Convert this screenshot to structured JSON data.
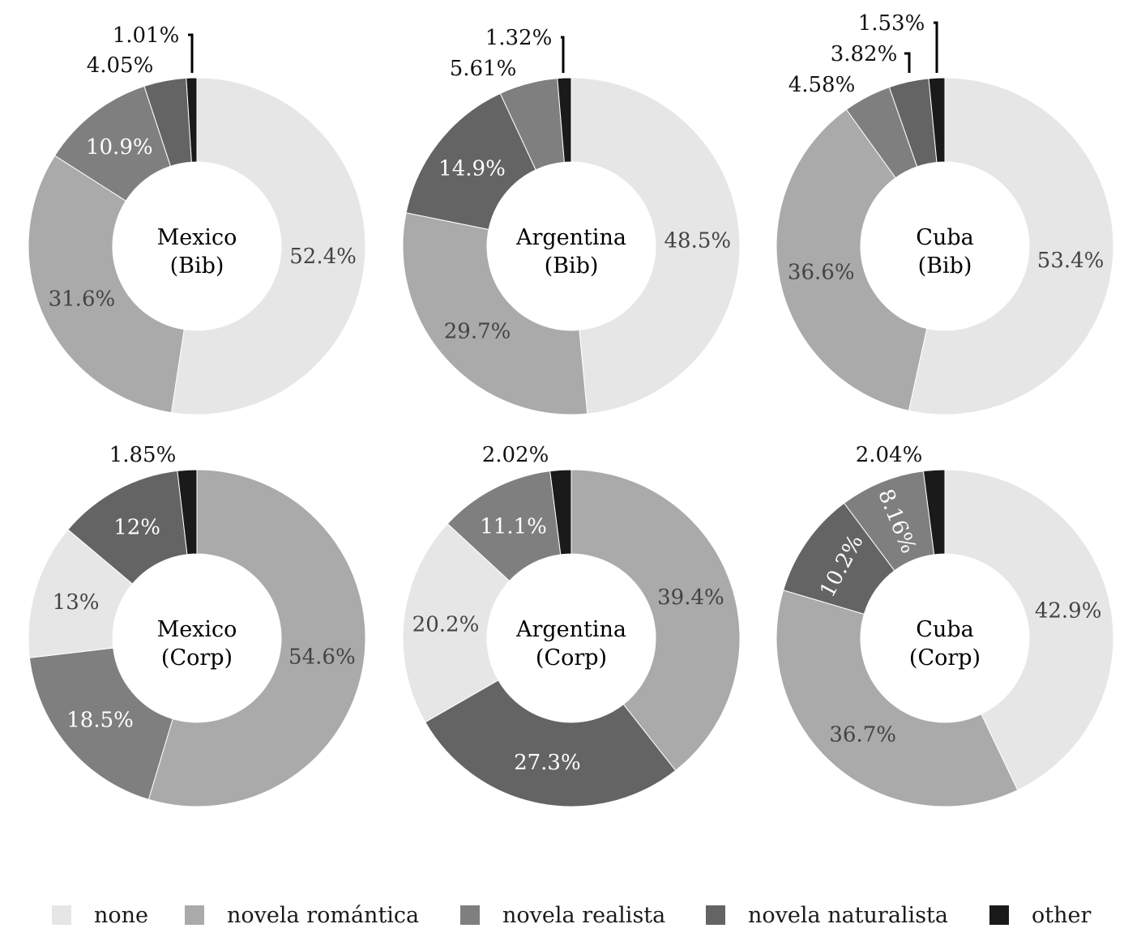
{
  "chart_data": [
    {
      "type": "pie",
      "title": "Mexico\n(Bib)",
      "categories": [
        "none",
        "novela romántica",
        "novela realista",
        "novela naturalista",
        "other"
      ],
      "values": [
        52.4,
        31.6,
        10.9,
        4.05,
        1.01
      ],
      "labels": [
        "52.4%",
        "31.6%",
        "10.9%",
        "4.05%",
        "1.01%"
      ]
    },
    {
      "type": "pie",
      "title": "Argentina\n(Bib)",
      "categories": [
        "none",
        "novela romántica",
        "novela naturalista",
        "novela realista",
        "other"
      ],
      "values": [
        48.5,
        29.7,
        14.9,
        5.61,
        1.32
      ],
      "labels": [
        "48.5%",
        "29.7%",
        "14.9%",
        "5.61%",
        "1.32%"
      ]
    },
    {
      "type": "pie",
      "title": "Cuba\n(Bib)",
      "categories": [
        "none",
        "novela romántica",
        "novela realista",
        "novela naturalista",
        "other"
      ],
      "values": [
        53.4,
        36.6,
        4.58,
        3.82,
        1.53
      ],
      "labels": [
        "53.4%",
        "36.6%",
        "4.58%",
        "3.82%",
        "1.53%"
      ]
    },
    {
      "type": "pie",
      "title": "Mexico\n(Corp)",
      "categories": [
        "novela romántica",
        "novela realista",
        "none",
        "novela naturalista",
        "other"
      ],
      "values": [
        54.6,
        18.5,
        13,
        12,
        1.85
      ],
      "labels": [
        "54.6%",
        "18.5%",
        "13%",
        "12%",
        "1.85%"
      ]
    },
    {
      "type": "pie",
      "title": "Argentina\n(Corp)",
      "categories": [
        "novela romántica",
        "novela naturalista",
        "none",
        "novela realista",
        "other"
      ],
      "values": [
        39.4,
        27.3,
        20.2,
        11.1,
        2.02
      ],
      "labels": [
        "39.4%",
        "27.3%",
        "20.2%",
        "11.1%",
        "2.02%"
      ]
    },
    {
      "type": "pie",
      "title": "Cuba\n(Corp)",
      "categories": [
        "none",
        "novela romántica",
        "novela naturalista",
        "novela realista",
        "other"
      ],
      "values": [
        42.9,
        36.7,
        10.2,
        8.16,
        2.04
      ],
      "labels": [
        "42.9%",
        "36.7%",
        "10.2%",
        "8.16%",
        "2.04%"
      ]
    }
  ],
  "legend": {
    "placement": "bottom",
    "items": [
      {
        "label": "none",
        "color": "#e6e6e6"
      },
      {
        "label": "novela romántica",
        "color": "#aaaaaa"
      },
      {
        "label": "novela realista",
        "color": "#7f7f7f"
      },
      {
        "label": "novela naturalista",
        "color": "#646464"
      },
      {
        "label": "other",
        "color": "#1a1a1a"
      }
    ]
  },
  "colors": {
    "none": "#e6e6e6",
    "novela romántica": "#aaaaaa",
    "novela realista": "#7f7f7f",
    "novela naturalista": "#646464",
    "other": "#1a1a1a",
    "label_dark": "#444444",
    "label_light": "#ffffff",
    "label_outside": "#111111"
  }
}
